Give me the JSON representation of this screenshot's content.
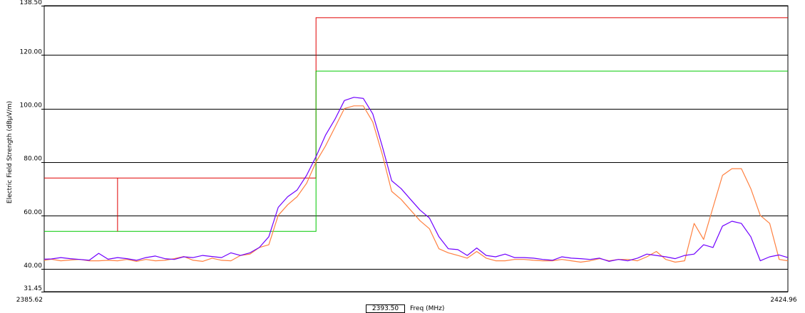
{
  "chart_data": {
    "type": "line",
    "ylabel": "Electric Field Strength (dBμV/m)",
    "xlabel": "Freq (MHz)",
    "xlim": [
      2385.62,
      2424.96
    ],
    "ylim": [
      31.45,
      138.5
    ],
    "y_ticks": [
      {
        "value": 138.5,
        "label": "138.50"
      },
      {
        "value": 120.0,
        "label": "120.00"
      },
      {
        "value": 100.0,
        "label": "100.00"
      },
      {
        "value": 80.0,
        "label": "80.00"
      },
      {
        "value": 60.0,
        "label": "60.00"
      },
      {
        "value": 40.0,
        "label": "40.00"
      },
      {
        "value": 31.45,
        "label": "31.45"
      }
    ],
    "x_ticks": [
      {
        "value": 2385.62,
        "label": "2385.62"
      },
      {
        "value": 2424.96,
        "label": "2424.96"
      }
    ],
    "grid": true,
    "cursor": {
      "value": 2393.5,
      "label": "2393.50"
    },
    "limit_lines": [
      {
        "color": "#e00000",
        "points": [
          [
            2385.62,
            74.0
          ],
          [
            2400.0,
            74.0
          ],
          [
            2400.0,
            134.0
          ],
          [
            2424.96,
            134.0
          ]
        ]
      },
      {
        "color": "#00c800",
        "points": [
          [
            2385.62,
            54.0
          ],
          [
            2400.0,
            54.0
          ],
          [
            2400.0,
            114.0
          ],
          [
            2424.96,
            114.0
          ]
        ]
      }
    ],
    "marker": {
      "color": "#e00000",
      "x": 2389.5,
      "y_top": 74.0,
      "y_bottom": 54.0
    },
    "series": [
      {
        "color": "#7000ff",
        "points": [
          [
            2385.62,
            43.6
          ],
          [
            2386.0,
            43.7
          ],
          [
            2386.5,
            44.2
          ],
          [
            2387.0,
            43.8
          ],
          [
            2387.5,
            43.5
          ],
          [
            2388.0,
            43.2
          ],
          [
            2388.5,
            45.8
          ],
          [
            2389.0,
            43.6
          ],
          [
            2389.5,
            44.2
          ],
          [
            2390.0,
            43.8
          ],
          [
            2390.5,
            43.2
          ],
          [
            2391.0,
            44.2
          ],
          [
            2391.5,
            44.8
          ],
          [
            2392.0,
            43.8
          ],
          [
            2392.5,
            43.5
          ],
          [
            2393.0,
            44.5
          ],
          [
            2393.5,
            44.2
          ],
          [
            2394.0,
            45.0
          ],
          [
            2394.5,
            44.6
          ],
          [
            2395.0,
            44.2
          ],
          [
            2395.5,
            46.0
          ],
          [
            2396.0,
            45.0
          ],
          [
            2396.5,
            46.0
          ],
          [
            2397.0,
            48.0
          ],
          [
            2397.5,
            52.0
          ],
          [
            2398.0,
            63.0
          ],
          [
            2398.5,
            67.0
          ],
          [
            2399.0,
            69.5
          ],
          [
            2399.5,
            75.0
          ],
          [
            2400.0,
            82.0
          ],
          [
            2400.5,
            90.0
          ],
          [
            2401.0,
            96.0
          ],
          [
            2401.5,
            103.0
          ],
          [
            2402.0,
            104.2
          ],
          [
            2402.5,
            103.8
          ],
          [
            2403.0,
            98.0
          ],
          [
            2403.5,
            86.0
          ],
          [
            2404.0,
            73.0
          ],
          [
            2404.5,
            70.0
          ],
          [
            2405.0,
            66.0
          ],
          [
            2405.5,
            62.0
          ],
          [
            2406.0,
            59.0
          ],
          [
            2406.5,
            52.0
          ],
          [
            2407.0,
            47.5
          ],
          [
            2407.5,
            47.2
          ],
          [
            2408.0,
            45.0
          ],
          [
            2408.5,
            47.8
          ],
          [
            2409.0,
            45.0
          ],
          [
            2409.5,
            44.5
          ],
          [
            2410.0,
            45.5
          ],
          [
            2410.5,
            44.2
          ],
          [
            2411.0,
            44.2
          ],
          [
            2411.5,
            44.0
          ],
          [
            2412.0,
            43.5
          ],
          [
            2412.5,
            43.2
          ],
          [
            2413.0,
            44.5
          ],
          [
            2413.5,
            44.0
          ],
          [
            2414.0,
            43.8
          ],
          [
            2414.5,
            43.5
          ],
          [
            2415.0,
            44.0
          ],
          [
            2415.5,
            42.8
          ],
          [
            2416.0,
            43.5
          ],
          [
            2416.5,
            43.0
          ],
          [
            2417.0,
            44.0
          ],
          [
            2417.5,
            45.5
          ],
          [
            2418.0,
            45.0
          ],
          [
            2418.5,
            44.5
          ],
          [
            2419.0,
            43.8
          ],
          [
            2419.5,
            45.0
          ],
          [
            2420.0,
            45.5
          ],
          [
            2420.5,
            49.0
          ],
          [
            2421.0,
            48.0
          ],
          [
            2421.5,
            56.0
          ],
          [
            2422.0,
            57.8
          ],
          [
            2422.5,
            57.0
          ],
          [
            2423.0,
            52.0
          ],
          [
            2423.5,
            43.0
          ],
          [
            2424.0,
            44.5
          ],
          [
            2424.5,
            45.2
          ],
          [
            2424.96,
            44.2
          ]
        ]
      },
      {
        "color": "#ff8040",
        "points": [
          [
            2385.62,
            43.2
          ],
          [
            2386.0,
            43.6
          ],
          [
            2386.5,
            43.0
          ],
          [
            2387.0,
            43.3
          ],
          [
            2387.5,
            43.5
          ],
          [
            2388.0,
            43.0
          ],
          [
            2388.5,
            43.0
          ],
          [
            2389.0,
            43.2
          ],
          [
            2389.5,
            43.0
          ],
          [
            2390.0,
            43.5
          ],
          [
            2390.5,
            42.8
          ],
          [
            2391.0,
            43.5
          ],
          [
            2391.5,
            43.0
          ],
          [
            2392.0,
            43.2
          ],
          [
            2392.5,
            43.8
          ],
          [
            2393.0,
            44.6
          ],
          [
            2393.5,
            43.2
          ],
          [
            2394.0,
            42.8
          ],
          [
            2394.5,
            44.0
          ],
          [
            2395.0,
            43.2
          ],
          [
            2395.5,
            43.0
          ],
          [
            2396.0,
            45.0
          ],
          [
            2396.5,
            45.5
          ],
          [
            2397.0,
            48.0
          ],
          [
            2397.5,
            49.0
          ],
          [
            2398.0,
            60.0
          ],
          [
            2398.5,
            64.0
          ],
          [
            2399.0,
            67.0
          ],
          [
            2399.5,
            72.0
          ],
          [
            2400.0,
            80.0
          ],
          [
            2400.5,
            86.0
          ],
          [
            2401.0,
            93.0
          ],
          [
            2401.5,
            100.0
          ],
          [
            2402.0,
            101.0
          ],
          [
            2402.5,
            101.0
          ],
          [
            2403.0,
            95.0
          ],
          [
            2403.5,
            83.0
          ],
          [
            2404.0,
            69.0
          ],
          [
            2404.5,
            66.0
          ],
          [
            2405.0,
            62.0
          ],
          [
            2405.5,
            58.0
          ],
          [
            2406.0,
            55.0
          ],
          [
            2406.5,
            47.5
          ],
          [
            2407.0,
            46.0
          ],
          [
            2407.5,
            45.0
          ],
          [
            2408.0,
            44.0
          ],
          [
            2408.5,
            46.5
          ],
          [
            2409.0,
            44.0
          ],
          [
            2409.5,
            43.0
          ],
          [
            2410.0,
            43.0
          ],
          [
            2410.5,
            43.5
          ],
          [
            2411.0,
            43.5
          ],
          [
            2411.5,
            43.2
          ],
          [
            2412.0,
            43.0
          ],
          [
            2412.5,
            43.0
          ],
          [
            2413.0,
            43.5
          ],
          [
            2413.5,
            43.0
          ],
          [
            2414.0,
            42.5
          ],
          [
            2414.5,
            43.0
          ],
          [
            2415.0,
            43.8
          ],
          [
            2415.5,
            43.0
          ],
          [
            2416.0,
            43.5
          ],
          [
            2416.5,
            43.5
          ],
          [
            2417.0,
            43.0
          ],
          [
            2417.5,
            44.5
          ],
          [
            2418.0,
            46.5
          ],
          [
            2418.5,
            43.5
          ],
          [
            2419.0,
            42.5
          ],
          [
            2419.5,
            43.0
          ],
          [
            2420.0,
            57.0
          ],
          [
            2420.5,
            51.0
          ],
          [
            2421.0,
            63.0
          ],
          [
            2421.5,
            75.0
          ],
          [
            2422.0,
            77.5
          ],
          [
            2422.5,
            77.5
          ],
          [
            2423.0,
            70.0
          ],
          [
            2423.5,
            60.0
          ],
          [
            2424.0,
            57.0
          ],
          [
            2424.5,
            43.5
          ],
          [
            2424.96,
            43.0
          ]
        ]
      }
    ]
  }
}
